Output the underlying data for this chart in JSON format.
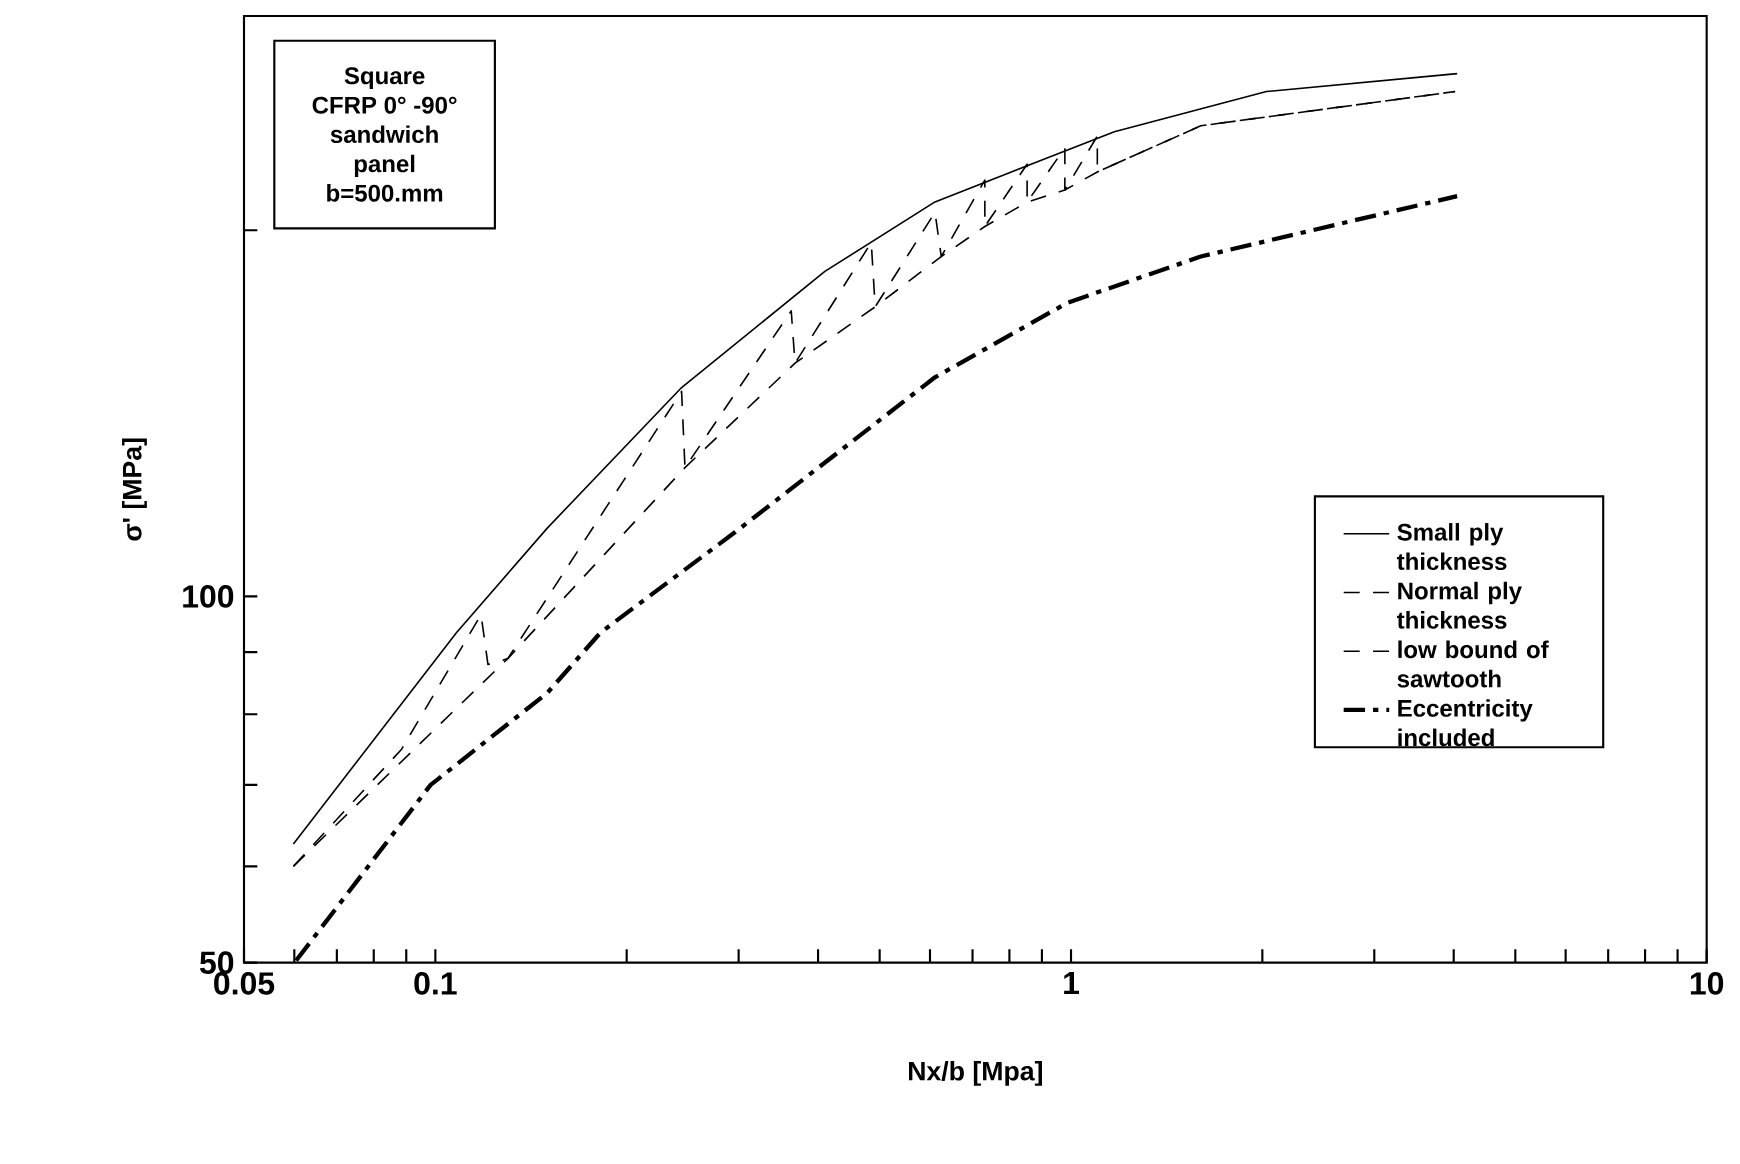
{
  "chart_data": {
    "type": "line",
    "xlabel": "Nx/b  [Mpa]",
    "ylabel": "σ'  [MPa]",
    "log": "xy",
    "annotations": [
      "Square",
      "CFRP  0° -90°",
      "sandwich",
      "panel",
      "b=500.mm"
    ],
    "xlim": [
      0.05,
      10
    ],
    "ylim": [
      50,
      300
    ],
    "xticks": [
      0.05,
      {
        "value": 0.06,
        "label": null
      },
      {
        "value": 0.07,
        "label": null
      },
      {
        "value": 0.08,
        "label": null
      },
      {
        "value": 0.09,
        "label": null
      },
      0.1,
      {
        "value": 0.2,
        "label": null
      },
      {
        "value": 0.3,
        "label": null
      },
      {
        "value": 0.4,
        "label": null
      },
      {
        "value": 0.5,
        "label": null
      },
      {
        "value": 0.6,
        "label": null
      },
      {
        "value": 0.7,
        "label": null
      },
      {
        "value": 0.8,
        "label": null
      },
      {
        "value": 0.9,
        "label": null
      },
      1,
      {
        "value": 2,
        "label": null
      },
      {
        "value": 3,
        "label": null
      },
      {
        "value": 4,
        "label": null
      },
      {
        "value": 5,
        "label": null
      },
      {
        "value": 6,
        "label": null
      },
      {
        "value": 7,
        "label": null
      },
      {
        "value": 8,
        "label": null
      },
      {
        "value": 9,
        "label": null
      },
      10
    ],
    "yticks": [
      50,
      {
        "value": 60,
        "label": null
      },
      {
        "value": 70,
        "label": null
      },
      {
        "value": 80,
        "label": null
      },
      {
        "value": 90,
        "label": null
      },
      100,
      {
        "value": 200,
        "label": null
      }
    ],
    "grid": false,
    "legend": "right",
    "marker": "none",
    "series": [
      {
        "name": "Small ply thickness",
        "color": "#000000",
        "line_style": "solid",
        "x": [
          0.0598,
          0.108,
          0.15,
          0.244,
          0.41,
          0.611,
          1.17,
          2.03,
          4.05
        ],
        "values": [
          62.6,
          93.4,
          113.8,
          148.5,
          185,
          211,
          241,
          260,
          269
        ]
      },
      {
        "name": "Normal ply thickness",
        "color": "#000000",
        "line_style": "dashed",
        "x": [
          0.0598,
          0.0885,
          0.118,
          0.121,
          0.13,
          0.244,
          0.247,
          0.363,
          0.368,
          0.485,
          0.492,
          0.611,
          0.625,
          0.732,
          0.732,
          0.853,
          0.853,
          0.978,
          0.978,
          1.1,
          1.1,
          1.6,
          4.02
        ],
        "values": [
          60.0,
          74.9,
          96.6,
          87.9,
          88.9,
          147.4,
          127.6,
          171.7,
          155.5,
          195.4,
          173.0,
          206.9,
          190.3,
          219.9,
          201.4,
          226.6,
          210.9,
          233.7,
          215.8,
          239.0,
          223.3,
          243.7,
          260.0
        ]
      },
      {
        "name": "low bound of sawtooth",
        "color": "#000000",
        "line_style": "dashed",
        "x": [
          0.0598,
          0.13,
          0.247,
          0.368,
          0.492,
          0.625,
          0.732,
          0.853,
          0.978,
          1.1,
          1.6,
          4.02
        ],
        "values": [
          60.0,
          88.9,
          127.6,
          155.5,
          173.0,
          190.3,
          201.4,
          210.9,
          215.8,
          223.3,
          243.7,
          260.0
        ]
      },
      {
        "name": "Eccentricity included",
        "color": "#000000",
        "line_style": "dashdot",
        "x": [
          0.0604,
          0.0983,
          0.15,
          0.182,
          0.296,
          0.611,
          0.986,
          1.6,
          4.05
        ],
        "values": [
          50.2,
          70.0,
          83.3,
          93.4,
          112.9,
          151.4,
          174.3,
          190.3,
          213.3
        ]
      }
    ]
  }
}
